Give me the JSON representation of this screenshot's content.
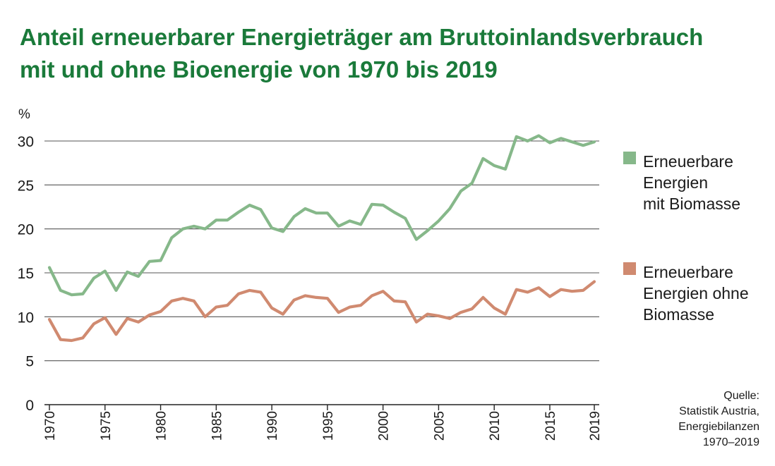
{
  "title_lines": [
    "Anteil erneuerbarer Energieträger am Bruttoinlandsverbrauch",
    "mit und ohne Bioenergie von 1970 bis 2019"
  ],
  "source_lines": [
    "Quelle:",
    "Statistik Austria,",
    "Energiebilanzen",
    "1970–2019"
  ],
  "chart_data": {
    "type": "line",
    "title": "Anteil erneuerbarer Energieträger am Bruttoinlandsverbrauch mit und ohne Bioenergie von 1970 bis 2019",
    "ylabel": "%",
    "xlabel": "",
    "ylim": [
      0,
      30
    ],
    "yticks": [
      0,
      5,
      10,
      15,
      20,
      25,
      30
    ],
    "xticks": [
      1970,
      1975,
      1980,
      1985,
      1990,
      1995,
      2000,
      2005,
      2010,
      2015,
      2019
    ],
    "grid": "horizontal",
    "legend_position": "right",
    "x": [
      1970,
      1971,
      1972,
      1973,
      1974,
      1975,
      1976,
      1977,
      1978,
      1979,
      1980,
      1981,
      1982,
      1983,
      1984,
      1985,
      1986,
      1987,
      1988,
      1989,
      1990,
      1991,
      1992,
      1993,
      1994,
      1995,
      1996,
      1997,
      1998,
      1999,
      2000,
      2001,
      2002,
      2003,
      2004,
      2005,
      2006,
      2007,
      2008,
      2009,
      2010,
      2011,
      2012,
      2013,
      2014,
      2015,
      2016,
      2017,
      2018,
      2019
    ],
    "series": [
      {
        "name": "Erneuerbare Energien mit Biomasse",
        "legend_lines": [
          "Erneuerbare",
          "Energien",
          "mit Biomasse"
        ],
        "color": "#86b88a",
        "values": [
          15.6,
          13.0,
          12.5,
          12.6,
          14.4,
          15.2,
          13.0,
          15.1,
          14.6,
          16.3,
          16.4,
          19.0,
          20.0,
          20.3,
          20.0,
          21.0,
          21.0,
          21.9,
          22.7,
          22.2,
          20.1,
          19.7,
          21.4,
          22.3,
          21.8,
          21.8,
          20.3,
          20.9,
          20.5,
          22.8,
          22.7,
          21.9,
          21.2,
          18.8,
          19.8,
          20.9,
          22.3,
          24.3,
          25.2,
          28.0,
          27.2,
          26.8,
          30.5,
          30.0,
          30.6,
          29.8,
          30.3,
          29.9,
          29.5,
          29.9
        ]
      },
      {
        "name": "Erneuerbare Energien ohne Biomasse",
        "legend_lines": [
          "Erneuerbare",
          "Energien ohne",
          "Biomasse"
        ],
        "color": "#d08a70",
        "values": [
          9.7,
          7.4,
          7.3,
          7.6,
          9.2,
          9.9,
          8.0,
          9.8,
          9.4,
          10.2,
          10.6,
          11.8,
          12.1,
          11.8,
          10.0,
          11.1,
          11.3,
          12.6,
          13.0,
          12.8,
          11.0,
          10.3,
          11.9,
          12.4,
          12.2,
          12.1,
          10.5,
          11.1,
          11.3,
          12.4,
          12.9,
          11.8,
          11.7,
          9.4,
          10.3,
          10.1,
          9.8,
          10.5,
          10.9,
          12.2,
          11.0,
          10.3,
          13.1,
          12.8,
          13.3,
          12.3,
          13.1,
          12.9,
          13.0,
          14.0
        ]
      }
    ]
  }
}
